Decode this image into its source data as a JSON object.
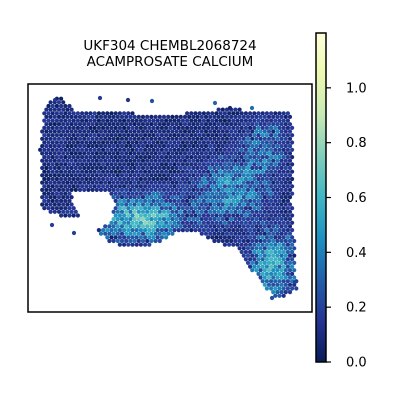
{
  "chart_data": {
    "type": "heatmap",
    "subtype": "hexbin-spatial",
    "title_lines": [
      "UKF304 CHEMBL2068724",
      "ACAMPROSATE CALCIUM"
    ],
    "colormap": "YlGnBu",
    "colorbar": {
      "range": [
        0.0,
        1.2
      ],
      "ticks": [
        0.0,
        0.2,
        0.4,
        0.6,
        0.8,
        1.0
      ],
      "tick_labels": [
        "0.0",
        "0.2",
        "0.4",
        "0.6",
        "0.8",
        "1.0"
      ]
    },
    "axes_visible": false,
    "grid": false
  }
}
